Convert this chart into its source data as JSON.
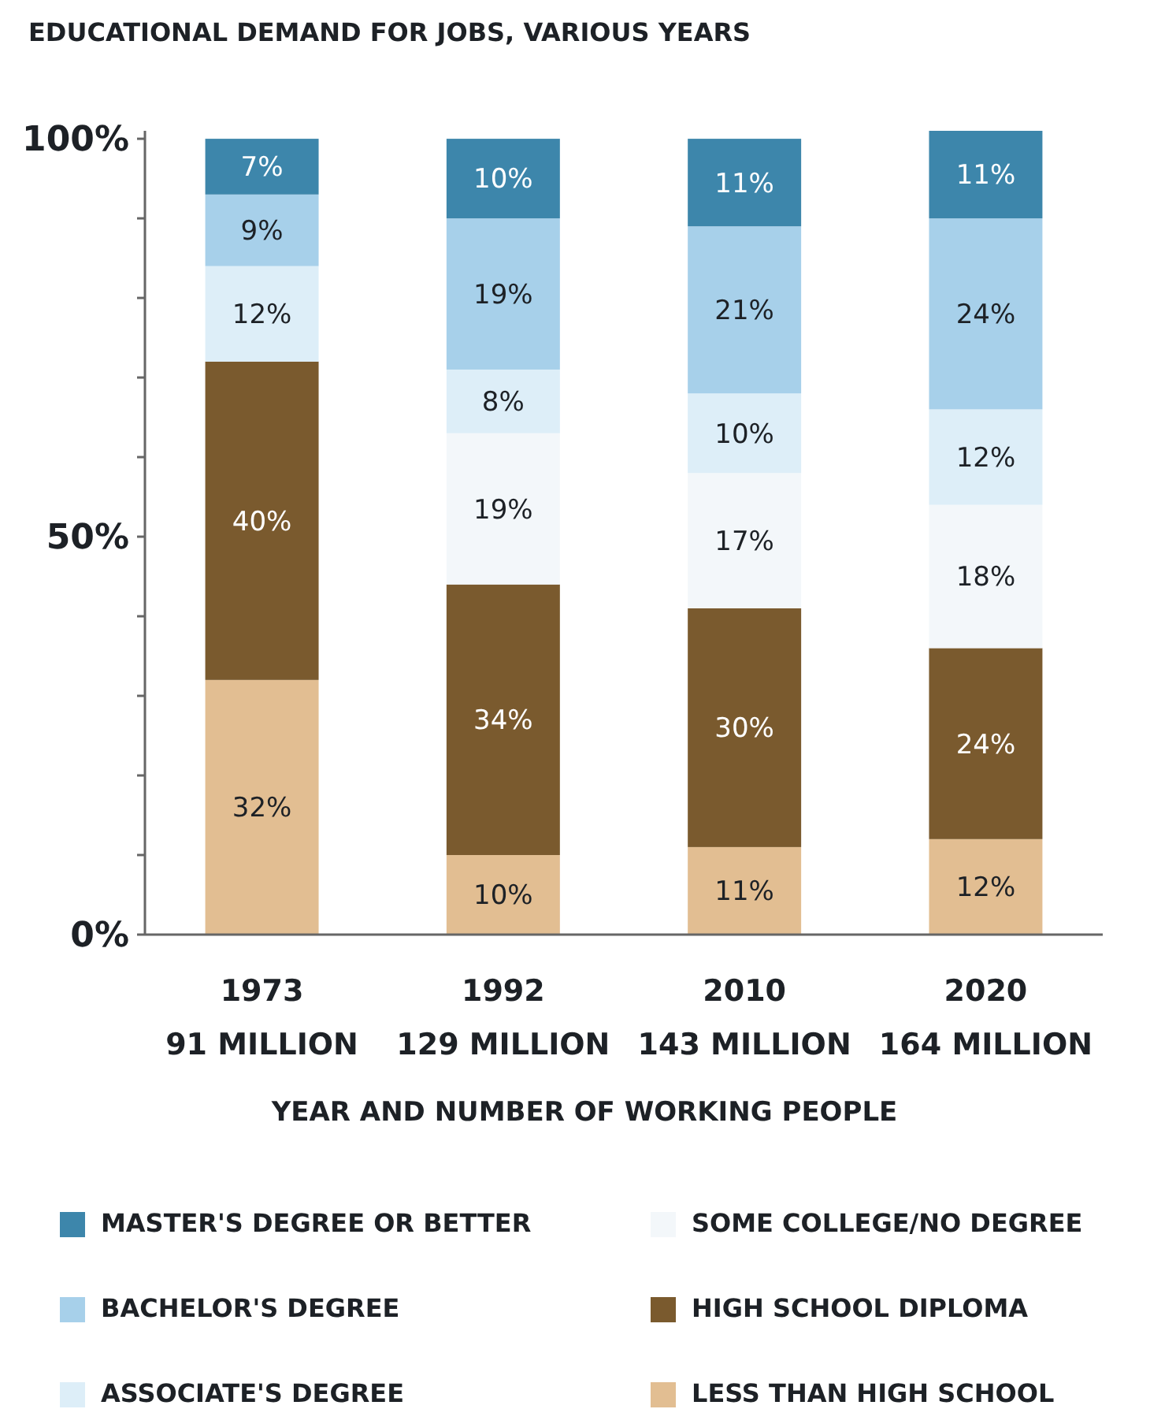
{
  "chart_data": {
    "type": "bar",
    "title": "EDUCATIONAL DEMAND FOR JOBS, VARIOUS YEARS",
    "xlabel": "YEAR AND NUMBER OF WORKING PEOPLE",
    "categories": [
      "1973\n91 MILLION",
      "1992\n129 MILLION",
      "2010\n143 MILLION",
      "2020\n164 MILLION"
    ],
    "stacked": true,
    "legend": "bottom",
    "grid": false,
    "ylim": [
      0,
      101
    ],
    "yticks": [
      {
        "value": 0,
        "label": "0%"
      },
      {
        "value": 10,
        "label": null
      },
      {
        "value": 20,
        "label": null
      },
      {
        "value": 30,
        "label": null
      },
      {
        "value": 40,
        "label": null
      },
      {
        "value": 50,
        "label": "50%"
      },
      {
        "value": 60,
        "label": null
      },
      {
        "value": 70,
        "label": null
      },
      {
        "value": 80,
        "label": null
      },
      {
        "value": 90,
        "label": null
      },
      {
        "value": 100,
        "label": "100%"
      }
    ],
    "series": [
      {
        "name": "LESS THAN HIGH SCHOOL",
        "color": "#e2be92",
        "values": [
          32,
          10,
          11,
          12
        ],
        "value_labels": [
          "32%",
          "10%",
          "11%",
          "12%"
        ]
      },
      {
        "name": "HIGH SCHOOL DIPLOMA",
        "color": "#7a5a2e",
        "values": [
          40,
          34,
          30,
          24
        ],
        "value_labels": [
          "40%",
          "34%",
          "30%",
          "24%"
        ]
      },
      {
        "name": "SOME COLLEGE/NO DEGREE",
        "color": "#f3f7fa",
        "values": [
          null,
          19,
          17,
          18
        ],
        "value_labels": [
          null,
          "19%",
          "17%",
          "18%"
        ]
      },
      {
        "name": "ASSOCIATE'S DEGREE",
        "color": "#ddeef8",
        "values": [
          12,
          8,
          10,
          12
        ],
        "value_labels": [
          "12%",
          "8%",
          "10%",
          "12%"
        ]
      },
      {
        "name": "BACHELOR'S DEGREE",
        "color": "#a7d0ea",
        "values": [
          9,
          19,
          21,
          24
        ],
        "value_labels": [
          "9%",
          "19%",
          "21%",
          "24%"
        ]
      },
      {
        "name": "MASTER'S DEGREE OR BETTER",
        "color": "#3d86ab",
        "values": [
          7,
          10,
          11,
          11
        ],
        "value_labels": [
          "7%",
          "10%",
          "11%",
          "11%"
        ]
      }
    ]
  }
}
